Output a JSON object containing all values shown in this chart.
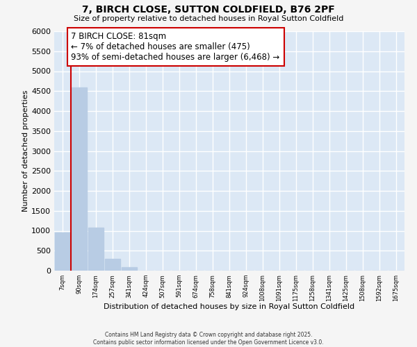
{
  "title": "7, BIRCH CLOSE, SUTTON COLDFIELD, B76 2PF",
  "subtitle": "Size of property relative to detached houses in Royal Sutton Coldfield",
  "xlabel": "Distribution of detached houses by size in Royal Sutton Coldfield",
  "ylabel": "Number of detached properties",
  "bar_color": "#b8cce4",
  "marker_color": "#cc0000",
  "categories": [
    "7sqm",
    "90sqm",
    "174sqm",
    "257sqm",
    "341sqm",
    "424sqm",
    "507sqm",
    "591sqm",
    "674sqm",
    "758sqm",
    "841sqm",
    "924sqm",
    "1008sqm",
    "1091sqm",
    "1175sqm",
    "1258sqm",
    "1341sqm",
    "1425sqm",
    "1508sqm",
    "1592sqm",
    "1675sqm"
  ],
  "values": [
    950,
    4600,
    1080,
    300,
    90,
    0,
    0,
    0,
    0,
    0,
    0,
    0,
    0,
    0,
    0,
    0,
    0,
    0,
    0,
    0,
    0
  ],
  "marker_label": "7 BIRCH CLOSE: 81sqm",
  "annotation_line1": "← 7% of detached houses are smaller (475)",
  "annotation_line2": "93% of semi-detached houses are larger (6,468) →",
  "ylim": [
    0,
    6000
  ],
  "yticks": [
    0,
    500,
    1000,
    1500,
    2000,
    2500,
    3000,
    3500,
    4000,
    4500,
    5000,
    5500,
    6000
  ],
  "plot_bg": "#dce8f5",
  "fig_bg": "#f5f5f5",
  "grid_color": "#ffffff",
  "footer_line1": "Contains HM Land Registry data © Crown copyright and database right 2025.",
  "footer_line2": "Contains public sector information licensed under the Open Government Licence v3.0."
}
